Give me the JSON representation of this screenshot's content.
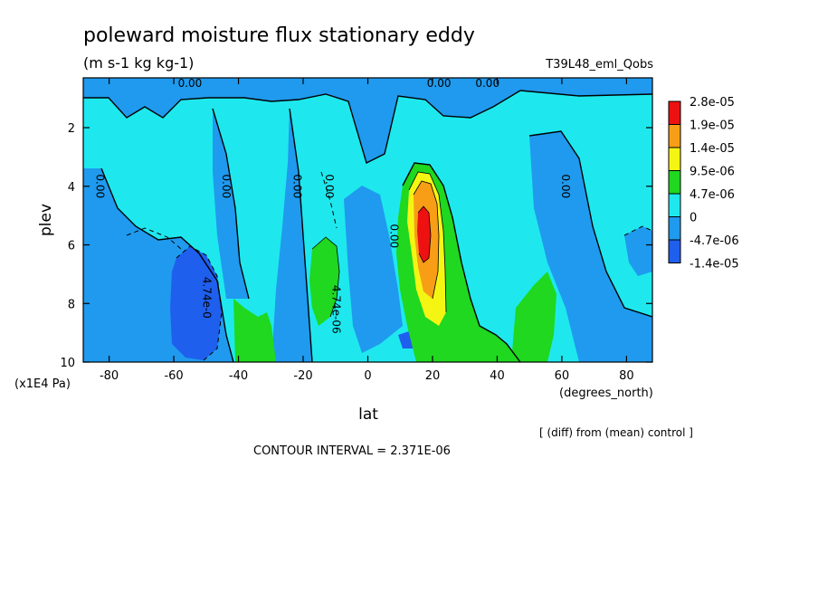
{
  "title": "poleward moisture flux stationary eddy",
  "units": "(m s-1 kg kg-1)",
  "run_name": "T39L48_eml_Qobs",
  "footnote": "[ (diff) from (mean) control ]",
  "contour_interval": "CONTOUR INTERVAL = 2.371E-06",
  "chart_data": {
    "type": "heatmap",
    "xlabel": "lat",
    "x_units": "(degrees_north)",
    "ylabel": "plev",
    "y_units": "(x1E4 Pa)",
    "xlim": [
      -88,
      88
    ],
    "ylim": [
      10,
      0.3
    ],
    "x_ticks": [
      -80,
      -60,
      -40,
      -20,
      0,
      20,
      40,
      60,
      80
    ],
    "y_ticks": [
      2,
      4,
      6,
      8,
      10
    ],
    "colorbar": [
      {
        "label": "2.8e-05",
        "color": "#ee1111"
      },
      {
        "label": "1.9e-05",
        "color": "#f79e16"
      },
      {
        "label": "1.4e-05",
        "color": "#f5f514"
      },
      {
        "label": "9.5e-06",
        "color": "#1fd81f"
      },
      {
        "label": "4.7e-06",
        "color": "#1ee8ee"
      },
      {
        "label": "0",
        "color": "#1f9aee"
      },
      {
        "label": "-4.7e-06",
        "color": "#1f5fee"
      },
      {
        "label": "-1.4e-05",
        "color": ""
      }
    ],
    "contour_labels": [
      {
        "text": "0.00",
        "lat": -55,
        "plev": 0.5
      },
      {
        "text": "0.00",
        "lat": 22,
        "plev": 0.5
      },
      {
        "text": "0.00",
        "lat": 37,
        "plev": 0.5
      },
      {
        "text": "0.00",
        "lat": -83,
        "plev": 4
      },
      {
        "text": "0.00",
        "lat": -44,
        "plev": 4
      },
      {
        "text": "0.00",
        "lat": -22,
        "plev": 4
      },
      {
        "text": "0.00",
        "lat": -12,
        "plev": 4
      },
      {
        "text": "0.00",
        "lat": 8,
        "plev": 5.7
      },
      {
        "text": "0.00",
        "lat": 61,
        "plev": 4
      },
      {
        "text": "4.74e-0",
        "lat": -50,
        "plev": 7.8
      },
      {
        "text": "4.74e-06",
        "lat": -10,
        "plev": 8.2
      }
    ]
  }
}
